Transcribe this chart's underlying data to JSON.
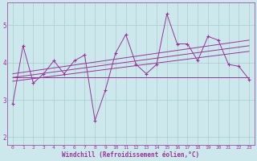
{
  "background_color": "#cce8ec",
  "grid_color": "#aacccc",
  "line_color": "#993399",
  "xlabel": "Windchill (Refroidissement éolien,°C)",
  "xlabel_color": "#993399",
  "xlim": [
    -0.5,
    23.5
  ],
  "ylim": [
    1.8,
    5.6
  ],
  "yticks": [
    2,
    3,
    4,
    5
  ],
  "xticks": [
    0,
    1,
    2,
    3,
    4,
    5,
    6,
    7,
    8,
    9,
    10,
    11,
    12,
    13,
    14,
    15,
    16,
    17,
    18,
    19,
    20,
    21,
    22,
    23
  ],
  "series1": {
    "x": [
      0,
      1,
      2,
      3,
      4,
      5,
      6,
      7,
      8,
      9,
      10,
      11,
      12,
      13,
      14,
      15,
      16,
      17,
      18,
      19,
      20,
      21,
      22,
      23
    ],
    "y": [
      2.9,
      4.45,
      3.45,
      3.7,
      4.05,
      3.7,
      4.05,
      4.2,
      2.45,
      3.25,
      4.25,
      4.75,
      3.95,
      3.7,
      3.95,
      5.3,
      4.5,
      4.5,
      4.05,
      4.7,
      4.6,
      3.95,
      3.9,
      3.55
    ]
  },
  "series2": {
    "x": [
      0,
      23
    ],
    "y": [
      3.6,
      3.6
    ]
  },
  "series3": {
    "x": [
      0,
      23
    ],
    "y": [
      3.5,
      4.3
    ]
  },
  "series4": {
    "x": [
      0,
      23
    ],
    "y": [
      3.6,
      4.45
    ]
  },
  "series5": {
    "x": [
      0,
      23
    ],
    "y": [
      3.7,
      4.6
    ]
  }
}
